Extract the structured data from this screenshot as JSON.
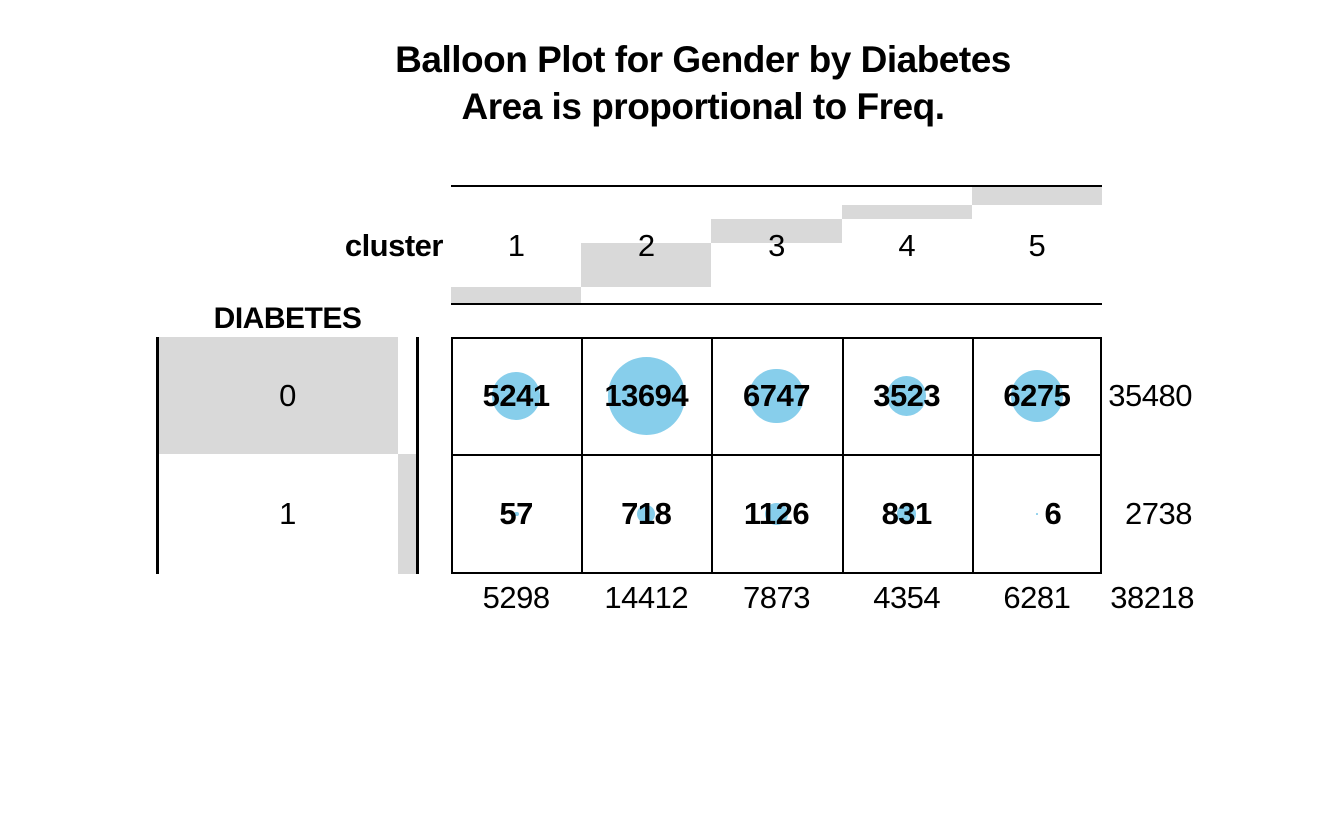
{
  "title": {
    "line1": "Balloon Plot for Gender by Diabetes",
    "line2": "Area is proportional to Freq."
  },
  "colors": {
    "balloon": "#87CEEB",
    "margin_bar": "#D9D9D9",
    "line": "#000000",
    "text": "#000000",
    "background": "#FFFFFF"
  },
  "chart_data": {
    "type": "table",
    "subtype": "balloonplot",
    "title": "Balloon Plot for Gender by Diabetes",
    "subtitle": "Area is proportional to Freq.",
    "col_var": "cluster",
    "row_var": "DIABETES",
    "col_labels": [
      "1",
      "2",
      "3",
      "4",
      "5"
    ],
    "row_labels": [
      "0",
      "1"
    ],
    "values": [
      [
        5241,
        13694,
        6747,
        3523,
        6275
      ],
      [
        57,
        718,
        1126,
        831,
        6
      ]
    ],
    "row_totals": [
      35480,
      2738
    ],
    "col_totals": [
      5298,
      14412,
      7873,
      4354,
      6281
    ],
    "grand_total": 38218,
    "scale_note": "balloon area proportional to Freq",
    "margin_note": "gray bars behind row/column labels show cumulative shares of totals",
    "legend": "none",
    "grid": "cell borders on"
  }
}
